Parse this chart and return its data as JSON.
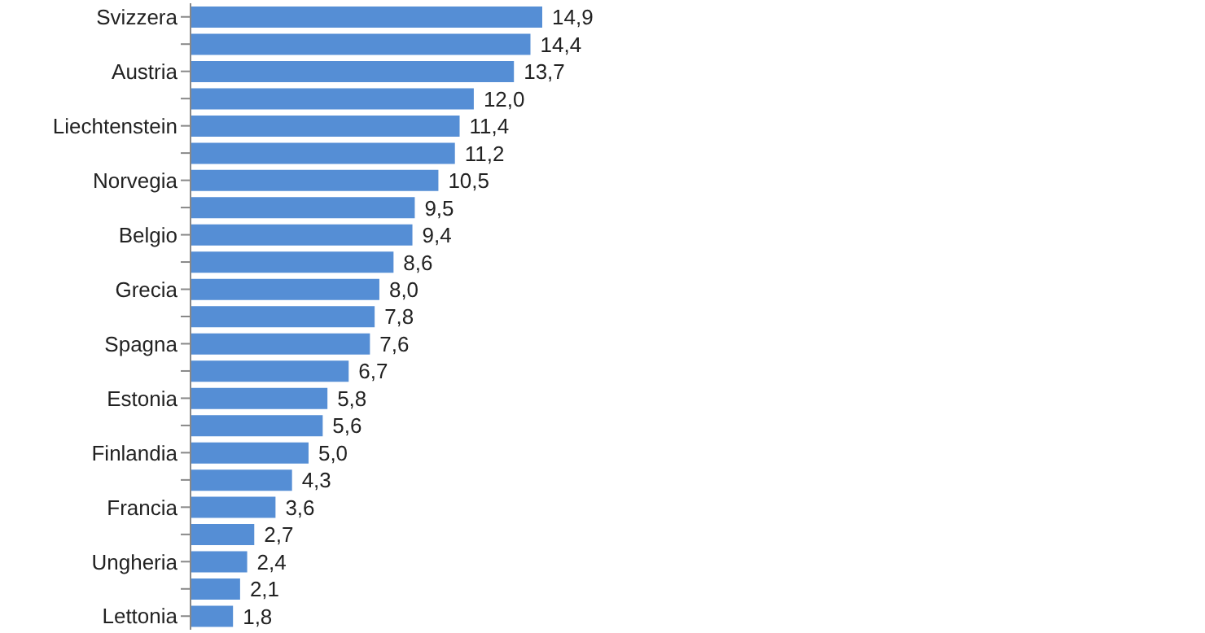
{
  "chart_data": {
    "type": "bar",
    "orientation": "horizontal",
    "categories": [
      "Svizzera",
      null,
      "Austria",
      null,
      "Liechtenstein",
      null,
      "Norvegia",
      null,
      "Belgio",
      null,
      "Grecia",
      null,
      "Spagna",
      null,
      "Estonia",
      null,
      "Finlandia",
      null,
      "Francia",
      null,
      "Ungheria",
      null,
      "Lettonia"
    ],
    "values": [
      14.9,
      14.4,
      13.7,
      12.0,
      11.4,
      11.2,
      10.5,
      9.5,
      9.4,
      8.6,
      8.0,
      7.8,
      7.6,
      6.7,
      5.8,
      5.6,
      5.0,
      4.3,
      3.6,
      2.7,
      2.4,
      2.1,
      1.8
    ],
    "value_labels": [
      "14,9",
      "14,4",
      "13,7",
      "12,0",
      "11,4",
      "11,2",
      "10,5",
      "9,5",
      "9,4",
      "8,6",
      "8,0",
      "7,8",
      "7,6",
      "6,7",
      "5,8",
      "5,6",
      "5,0",
      "4,3",
      "3,6",
      "2,7",
      "2,4",
      "2,1",
      "1,8"
    ],
    "color": "#558ed5"
  }
}
